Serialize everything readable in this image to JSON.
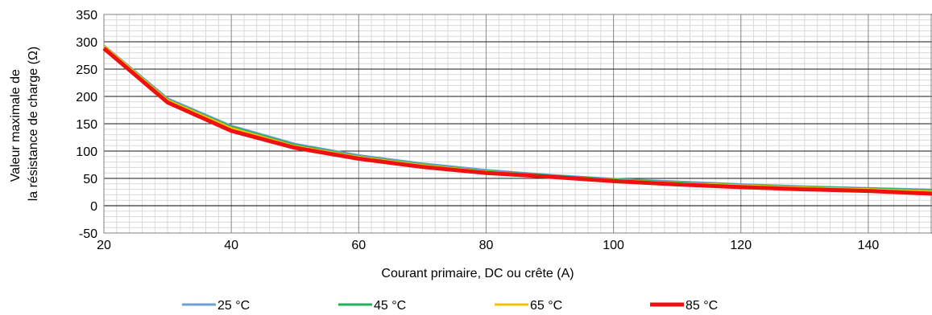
{
  "chart_data": {
    "type": "line",
    "xlabel": "Courant primaire, DC ou crête (A)",
    "ylabel_lines": [
      "Valeur maximale de",
      "la résistance de charge (Ω)"
    ],
    "xlim": [
      20,
      150
    ],
    "ylim": [
      -50,
      350
    ],
    "x_ticks": [
      20,
      40,
      60,
      80,
      100,
      120,
      140
    ],
    "y_ticks": [
      -50,
      0,
      50,
      100,
      150,
      200,
      250,
      300,
      350
    ],
    "x_minor_step": 2,
    "y_minor_step": 10,
    "grid": true,
    "legend_position": "bottom",
    "series": [
      {
        "name": "25 °C",
        "color": "#6fa0d4",
        "x": [
          20,
          30,
          40,
          50,
          60,
          70,
          80,
          90,
          100,
          110,
          120,
          130,
          140,
          150
        ],
        "y": [
          293,
          196,
          146,
          113,
          92,
          77,
          65,
          56,
          49,
          44,
          39,
          35,
          32,
          29
        ]
      },
      {
        "name": "45 °C",
        "color": "#22b25a",
        "x": [
          20,
          30,
          40,
          50,
          60,
          70,
          80,
          90,
          100,
          110,
          120,
          130,
          140,
          150
        ],
        "y": [
          292,
          194,
          144,
          111,
          90,
          75,
          63,
          55,
          48,
          42,
          38,
          34,
          31,
          28
        ]
      },
      {
        "name": "65 °C",
        "color": "#f5c200",
        "x": [
          20,
          30,
          40,
          50,
          60,
          70,
          80,
          90,
          100,
          110,
          120,
          130,
          140,
          150
        ],
        "y": [
          292,
          193,
          142,
          109,
          89,
          74,
          62,
          54,
          47,
          41,
          37,
          33,
          30,
          26
        ]
      },
      {
        "name": "85 °C",
        "color": "#ee1111",
        "x": [
          20,
          30,
          40,
          50,
          60,
          70,
          80,
          90,
          100,
          110,
          120,
          130,
          140,
          150
        ],
        "y": [
          288,
          189,
          137,
          106,
          86,
          71,
          60,
          53,
          45,
          39,
          34,
          30,
          27,
          22
        ]
      }
    ]
  }
}
